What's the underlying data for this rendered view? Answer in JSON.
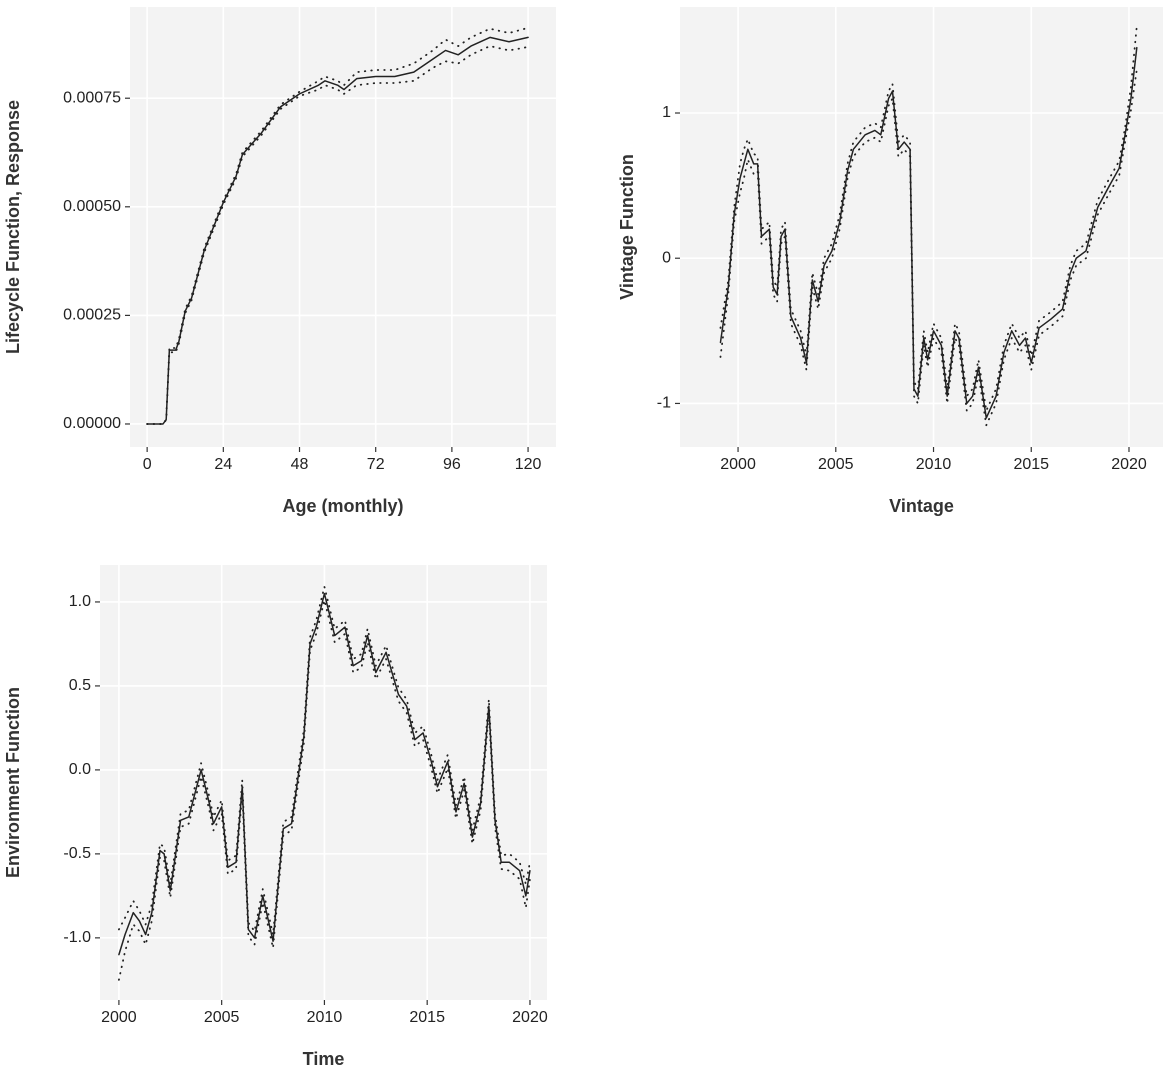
{
  "chart_data": [
    {
      "type": "line",
      "xlabel": "Age (monthly)",
      "ylabel": "Lifecycle Function, Response",
      "grid": true,
      "xlim": [
        -5.4,
        128.8
      ],
      "xticks": [
        0,
        24,
        48,
        72,
        96,
        120
      ],
      "ylim": [
        -5.3e-05,
        0.00096
      ],
      "yticks": [
        {
          "value": 0,
          "label": "0.00000"
        },
        0.00025,
        {
          "value": 0.0005,
          "label": "0.00050"
        },
        0.00075
      ],
      "x": [
        0,
        5,
        6,
        7,
        9,
        10,
        12,
        14,
        18,
        24,
        28,
        30,
        36,
        42,
        48,
        54,
        56,
        60,
        62,
        66,
        72,
        78,
        84,
        90,
        94,
        98,
        102,
        108,
        114,
        120
      ],
      "series": [
        {
          "color": "#222222",
          "style": "solid",
          "values": [
            0,
            0,
            1e-05,
            0.00017,
            0.00017,
            0.00019,
            0.00026,
            0.00029,
            0.0004,
            0.00051,
            0.00057,
            0.00062,
            0.00067,
            0.00073,
            0.00076,
            0.00078,
            0.00079,
            0.00078,
            0.00077,
            0.000795,
            0.0008,
            0.0008,
            0.00081,
            0.00084,
            0.00086,
            0.00085,
            0.00087,
            0.00089,
            0.00088,
            0.00089
          ]
        },
        {
          "color": "#222222",
          "style": "dotted",
          "values": [
            0,
            0,
            1e-05,
            0.000175,
            0.000175,
            0.000195,
            0.000265,
            0.000295,
            0.000405,
            0.000515,
            0.000575,
            0.000625,
            0.000675,
            0.000735,
            0.000765,
            0.00079,
            0.0008,
            0.00079,
            0.00078,
            0.00081,
            0.000815,
            0.000815,
            0.00083,
            0.00086,
            0.000885,
            0.00087,
            0.00089,
            0.00091,
            0.0009,
            0.000912
          ]
        },
        {
          "color": "#222222",
          "style": "dotted",
          "values": [
            0,
            0,
            1e-05,
            0.000165,
            0.000165,
            0.000185,
            0.000255,
            0.000285,
            0.000395,
            0.000505,
            0.000565,
            0.000615,
            0.000665,
            0.000725,
            0.000755,
            0.00077,
            0.00078,
            0.00077,
            0.00076,
            0.00078,
            0.000785,
            0.000785,
            0.00079,
            0.00082,
            0.000835,
            0.00083,
            0.00085,
            0.00087,
            0.00086,
            0.000868
          ]
        }
      ]
    },
    {
      "type": "line",
      "xlabel": "Vintage",
      "ylabel": "Vintage Function",
      "grid": true,
      "xlim": [
        1997.03,
        2021.74
      ],
      "xticks": [
        2000,
        2005,
        2010,
        2015,
        2020
      ],
      "ylim": [
        -1.3,
        1.73
      ],
      "yticks": [
        -1,
        0,
        1
      ],
      "x": [
        1999.1,
        1999.5,
        1999.8,
        2000.1,
        2000.3,
        2000.5,
        2000.8,
        2001,
        2001.2,
        2001.6,
        2001.8,
        2002,
        2002.2,
        2002.4,
        2002.7,
        2003.2,
        2003.5,
        2003.8,
        2004.1,
        2004.4,
        2004.8,
        2005.2,
        2005.6,
        2005.9,
        2006.5,
        2007,
        2007.3,
        2007.7,
        2007.9,
        2008.2,
        2008.5,
        2008.8,
        2009,
        2009.2,
        2009.5,
        2009.7,
        2010,
        2010.4,
        2010.7,
        2011.1,
        2011.3,
        2011.7,
        2012,
        2012.3,
        2012.7,
        2013.2,
        2013.6,
        2014,
        2014.4,
        2014.7,
        2015,
        2015.4,
        2016,
        2016.6,
        2017,
        2017.3,
        2017.8,
        2018.4,
        2019,
        2019.5,
        2019.8,
        2020.1,
        2020.4
      ],
      "series": [
        {
          "color": "#222222",
          "style": "solid",
          "values": [
            -0.58,
            -0.2,
            0.3,
            0.55,
            0.65,
            0.75,
            0.65,
            0.65,
            0.15,
            0.2,
            -0.2,
            -0.25,
            0.15,
            0.2,
            -0.4,
            -0.55,
            -0.72,
            -0.15,
            -0.3,
            -0.05,
            0.05,
            0.25,
            0.6,
            0.75,
            0.85,
            0.88,
            0.85,
            1.1,
            1.15,
            0.75,
            0.8,
            0.75,
            -0.9,
            -0.95,
            -0.55,
            -0.7,
            -0.5,
            -0.6,
            -0.95,
            -0.5,
            -0.55,
            -1.0,
            -0.95,
            -0.75,
            -1.1,
            -0.95,
            -0.65,
            -0.5,
            -0.6,
            -0.55,
            -0.72,
            -0.48,
            -0.42,
            -0.35,
            -0.1,
            0,
            0.05,
            0.35,
            0.5,
            0.62,
            0.85,
            1.1,
            1.45
          ]
        },
        {
          "color": "#222222",
          "style": "dotted",
          "values": [
            -0.48,
            -0.15,
            0.35,
            0.65,
            0.75,
            0.82,
            0.72,
            0.7,
            0.2,
            0.25,
            -0.15,
            -0.2,
            0.2,
            0.25,
            -0.35,
            -0.5,
            -0.67,
            -0.1,
            -0.25,
            0,
            0.1,
            0.3,
            0.65,
            0.8,
            0.9,
            0.93,
            0.9,
            1.15,
            1.2,
            0.8,
            0.85,
            0.8,
            -0.85,
            -0.9,
            -0.5,
            -0.65,
            -0.45,
            -0.55,
            -0.9,
            -0.45,
            -0.5,
            -0.95,
            -0.9,
            -0.7,
            -1.05,
            -0.9,
            -0.6,
            -0.45,
            -0.55,
            -0.5,
            -0.67,
            -0.43,
            -0.37,
            -0.3,
            -0.05,
            0.05,
            0.1,
            0.4,
            0.55,
            0.67,
            0.9,
            1.18,
            1.6
          ]
        },
        {
          "color": "#222222",
          "style": "dotted",
          "values": [
            -0.68,
            -0.25,
            0.25,
            0.45,
            0.55,
            0.68,
            0.58,
            0.6,
            0.1,
            0.15,
            -0.25,
            -0.3,
            0.1,
            0.15,
            -0.45,
            -0.6,
            -0.77,
            -0.2,
            -0.35,
            -0.1,
            0,
            0.2,
            0.55,
            0.7,
            0.8,
            0.83,
            0.8,
            1.05,
            1.1,
            0.7,
            0.75,
            0.7,
            -0.95,
            -1.0,
            -0.6,
            -0.75,
            -0.55,
            -0.65,
            -1.0,
            -0.55,
            -0.6,
            -1.05,
            -1.0,
            -0.8,
            -1.15,
            -1.0,
            -0.7,
            -0.55,
            -0.65,
            -0.6,
            -0.77,
            -0.53,
            -0.47,
            -0.4,
            -0.15,
            -0.05,
            0,
            0.3,
            0.45,
            0.57,
            0.8,
            1.02,
            1.3
          ]
        }
      ]
    },
    {
      "type": "line",
      "xlabel": "Time",
      "ylabel": "Environment Function",
      "grid": true,
      "xlim": [
        1999.08,
        2020.83
      ],
      "xticks": [
        2000,
        2005,
        2010,
        2015,
        2020
      ],
      "ylim": [
        -1.37,
        1.22
      ],
      "yticks": [
        {
          "value": -1,
          "label": "-1.0"
        },
        -0.5,
        {
          "value": 0,
          "label": "0.0"
        },
        0.5,
        {
          "value": 1,
          "label": "1.0"
        }
      ],
      "x": [
        2000,
        2000.3,
        2000.7,
        2001,
        2001.3,
        2001.6,
        2002,
        2002.2,
        2002.5,
        2003,
        2003.4,
        2004,
        2004.4,
        2004.6,
        2005,
        2005.3,
        2005.7,
        2006,
        2006.3,
        2006.6,
        2007,
        2007.5,
        2008,
        2008.4,
        2009,
        2009.3,
        2009.6,
        2010,
        2010.5,
        2011,
        2011.4,
        2011.8,
        2012.1,
        2012.5,
        2013,
        2013.6,
        2014,
        2014.4,
        2014.8,
        2015.2,
        2015.5,
        2016,
        2016.4,
        2016.8,
        2017.2,
        2017.6,
        2018,
        2018.3,
        2018.6,
        2019,
        2019.5,
        2019.8,
        2020
      ],
      "series": [
        {
          "color": "#222222",
          "style": "solid",
          "values": [
            -1.1,
            -0.98,
            -0.85,
            -0.9,
            -0.98,
            -0.85,
            -0.48,
            -0.5,
            -0.72,
            -0.3,
            -0.28,
            0,
            -0.2,
            -0.32,
            -0.22,
            -0.58,
            -0.55,
            -0.1,
            -0.95,
            -1.0,
            -0.75,
            -1.02,
            -0.35,
            -0.32,
            0.2,
            0.75,
            0.85,
            1.05,
            0.8,
            0.85,
            0.62,
            0.65,
            0.8,
            0.58,
            0.7,
            0.45,
            0.38,
            0.18,
            0.22,
            0.05,
            -0.1,
            0.05,
            -0.25,
            -0.08,
            -0.4,
            -0.2,
            0.38,
            -0.3,
            -0.55,
            -0.55,
            -0.6,
            -0.75,
            -0.6
          ]
        },
        {
          "color": "#222222",
          "style": "dotted",
          "values": [
            -0.95,
            -0.88,
            -0.78,
            -0.84,
            -0.92,
            -0.8,
            -0.44,
            -0.46,
            -0.68,
            -0.26,
            -0.24,
            0.04,
            -0.16,
            -0.28,
            -0.18,
            -0.54,
            -0.51,
            -0.06,
            -0.91,
            -0.96,
            -0.71,
            -0.98,
            -0.31,
            -0.28,
            0.24,
            0.79,
            0.89,
            1.09,
            0.84,
            0.89,
            0.66,
            0.69,
            0.84,
            0.62,
            0.74,
            0.49,
            0.42,
            0.22,
            0.26,
            0.09,
            -0.06,
            0.09,
            -0.21,
            -0.04,
            -0.36,
            -0.16,
            0.42,
            -0.26,
            -0.51,
            -0.5,
            -0.55,
            -0.68,
            -0.55
          ]
        },
        {
          "color": "#222222",
          "style": "dotted",
          "values": [
            -1.25,
            -1.08,
            -0.92,
            -0.96,
            -1.04,
            -0.9,
            -0.52,
            -0.54,
            -0.76,
            -0.34,
            -0.32,
            -0.04,
            -0.24,
            -0.36,
            -0.26,
            -0.62,
            -0.59,
            -0.14,
            -0.99,
            -1.04,
            -0.79,
            -1.06,
            -0.39,
            -0.36,
            0.16,
            0.71,
            0.81,
            1.01,
            0.76,
            0.81,
            0.58,
            0.61,
            0.76,
            0.54,
            0.66,
            0.41,
            0.34,
            0.14,
            0.18,
            0.01,
            -0.14,
            0.01,
            -0.29,
            -0.12,
            -0.44,
            -0.24,
            0.34,
            -0.34,
            -0.59,
            -0.6,
            -0.65,
            -0.82,
            -0.65
          ]
        }
      ]
    }
  ]
}
